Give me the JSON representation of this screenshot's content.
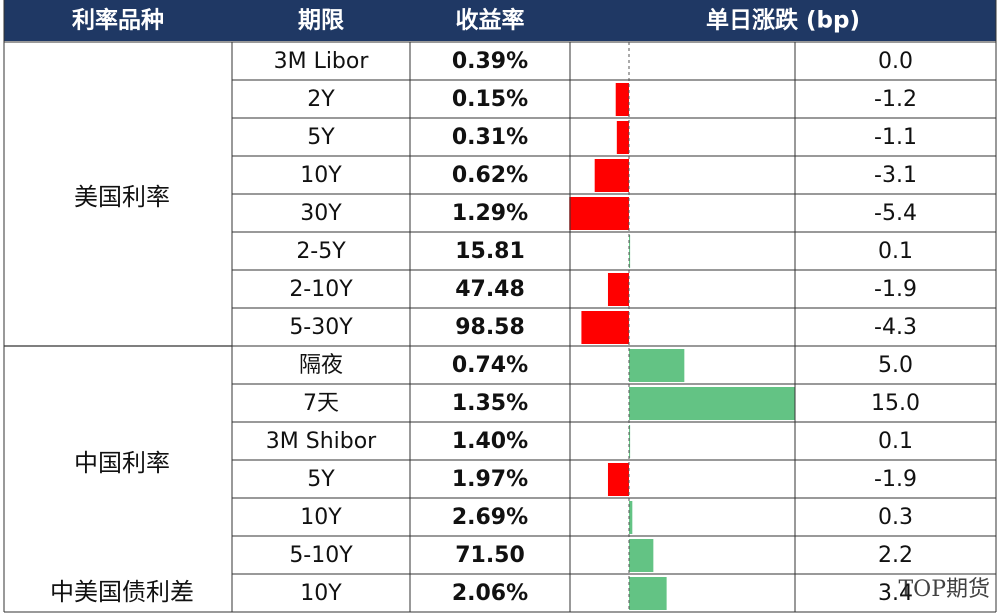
{
  "table": {
    "headers": [
      "利率品种",
      "期限",
      "收益率",
      "单日涨跌 (bp)"
    ],
    "groups": [
      {
        "name": "美国利率",
        "rows": [
          {
            "term": "3M Libor",
            "yield": "0.39%",
            "change": 0,
            "change_label": "0.0"
          },
          {
            "term": "2Y",
            "yield": "0.15%",
            "change": -1.2,
            "change_label": "-1.2"
          },
          {
            "term": "5Y",
            "yield": "0.31%",
            "change": -1.1,
            "change_label": "-1.1"
          },
          {
            "term": "10Y",
            "yield": "0.62%",
            "change": -3.1,
            "change_label": "-3.1"
          },
          {
            "term": "30Y",
            "yield": "1.29%",
            "change": -5.4,
            "change_label": "-5.4"
          },
          {
            "term": "2-5Y",
            "yield": "15.81",
            "change": 0.1,
            "change_label": "0.1"
          },
          {
            "term": "2-10Y",
            "yield": "47.48",
            "change": -1.9,
            "change_label": "-1.9"
          },
          {
            "term": "5-30Y",
            "yield": "98.58",
            "change": -4.3,
            "change_label": "-4.3"
          }
        ]
      },
      {
        "name": "中国利率",
        "rows": [
          {
            "term": "隔夜",
            "yield": "0.74%",
            "change": 5,
            "change_label": "5.0"
          },
          {
            "term": "7天",
            "yield": "1.35%",
            "change": 15,
            "change_label": "15.0"
          },
          {
            "term": "3M Shibor",
            "yield": "1.40%",
            "change": 0.1,
            "change_label": "0.1"
          },
          {
            "term": "5Y",
            "yield": "1.97%",
            "change": -1.9,
            "change_label": "-1.9"
          },
          {
            "term": "10Y",
            "yield": "2.69%",
            "change": 0.3,
            "change_label": "0.3"
          },
          {
            "term": "5-10Y",
            "yield": "71.50",
            "change": 2.2,
            "change_label": "2.2"
          }
        ]
      },
      {
        "name": "中美国债利差",
        "rows": [
          {
            "term": "10Y",
            "yield": "2.06%",
            "change": 3.4,
            "change_label": "3.4"
          }
        ]
      }
    ]
  },
  "watermark": "TOP期货"
}
